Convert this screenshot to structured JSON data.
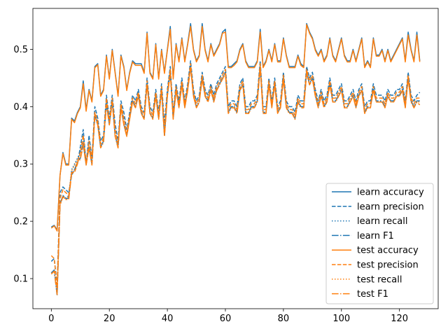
{
  "chart_data": {
    "type": "line",
    "title": "",
    "xlabel": "",
    "ylabel": "",
    "xlim": [
      -6.35,
      133.35
    ],
    "ylim": [
      0.0475,
      0.5714
    ],
    "xticks": [
      0,
      20,
      40,
      60,
      80,
      100,
      120
    ],
    "yticks": [
      0.1,
      0.2,
      0.3,
      0.4,
      0.5
    ],
    "grid": false,
    "legend_position": "lower-right",
    "colors": {
      "learn": "#1f77b4",
      "test": "#ff7f0e"
    },
    "series": [
      {
        "name": "learn accuracy",
        "style": "solid",
        "color": "#1f77b4",
        "values": [
          0.19,
          0.193,
          0.185,
          0.28,
          0.32,
          0.3,
          0.3,
          0.38,
          0.375,
          0.39,
          0.4,
          0.445,
          0.395,
          0.43,
          0.41,
          0.47,
          0.475,
          0.42,
          0.43,
          0.49,
          0.45,
          0.5,
          0.46,
          0.42,
          0.49,
          0.47,
          0.43,
          0.46,
          0.48,
          0.475,
          0.475,
          0.475,
          0.46,
          0.53,
          0.46,
          0.45,
          0.51,
          0.45,
          0.5,
          0.46,
          0.5,
          0.54,
          0.45,
          0.51,
          0.48,
          0.52,
          0.48,
          0.51,
          0.545,
          0.5,
          0.48,
          0.49,
          0.545,
          0.5,
          0.48,
          0.51,
          0.49,
          0.5,
          0.51,
          0.53,
          0.535,
          0.47,
          0.47,
          0.475,
          0.48,
          0.5,
          0.51,
          0.48,
          0.47,
          0.47,
          0.47,
          0.48,
          0.535,
          0.47,
          0.48,
          0.5,
          0.48,
          0.51,
          0.48,
          0.48,
          0.52,
          0.49,
          0.47,
          0.47,
          0.47,
          0.49,
          0.475,
          0.47,
          0.545,
          0.53,
          0.52,
          0.5,
          0.49,
          0.5,
          0.48,
          0.49,
          0.52,
          0.49,
          0.48,
          0.5,
          0.52,
          0.49,
          0.48,
          0.48,
          0.5,
          0.48,
          0.5,
          0.52,
          0.47,
          0.48,
          0.47,
          0.52,
          0.49,
          0.49,
          0.5,
          0.48,
          0.5,
          0.48,
          0.49,
          0.5,
          0.51,
          0.52,
          0.48,
          0.53,
          0.5,
          0.48,
          0.53,
          0.48
        ]
      },
      {
        "name": "learn precision",
        "style": "dashed",
        "color": "#1f77b4",
        "values": [
          0.13,
          0.135,
          0.09,
          0.25,
          0.26,
          0.255,
          0.25,
          0.28,
          0.29,
          0.3,
          0.33,
          0.36,
          0.3,
          0.35,
          0.31,
          0.4,
          0.38,
          0.34,
          0.35,
          0.42,
          0.38,
          0.42,
          0.37,
          0.34,
          0.41,
          0.39,
          0.36,
          0.39,
          0.42,
          0.41,
          0.43,
          0.4,
          0.39,
          0.45,
          0.4,
          0.39,
          0.43,
          0.39,
          0.44,
          0.37,
          0.43,
          0.47,
          0.39,
          0.44,
          0.41,
          0.45,
          0.41,
          0.44,
          0.48,
          0.43,
          0.41,
          0.42,
          0.46,
          0.43,
          0.42,
          0.44,
          0.42,
          0.44,
          0.45,
          0.46,
          0.47,
          0.4,
          0.41,
          0.41,
          0.4,
          0.44,
          0.45,
          0.4,
          0.4,
          0.41,
          0.41,
          0.42,
          0.48,
          0.4,
          0.4,
          0.45,
          0.41,
          0.45,
          0.4,
          0.41,
          0.46,
          0.41,
          0.4,
          0.4,
          0.39,
          0.42,
          0.41,
          0.41,
          0.47,
          0.45,
          0.46,
          0.43,
          0.41,
          0.43,
          0.41,
          0.42,
          0.45,
          0.42,
          0.42,
          0.43,
          0.44,
          0.41,
          0.41,
          0.42,
          0.43,
          0.41,
          0.43,
          0.44,
          0.4,
          0.41,
          0.41,
          0.44,
          0.42,
          0.42,
          0.42,
          0.41,
          0.43,
          0.42,
          0.42,
          0.43,
          0.43,
          0.44,
          0.41,
          0.46,
          0.42,
          0.41,
          0.42,
          0.425
        ]
      },
      {
        "name": "learn recall",
        "style": "dotted",
        "color": "#1f77b4",
        "values": [
          0.11,
          0.115,
          0.075,
          0.23,
          0.245,
          0.24,
          0.245,
          0.29,
          0.3,
          0.31,
          0.32,
          0.34,
          0.3,
          0.33,
          0.3,
          0.39,
          0.37,
          0.33,
          0.34,
          0.41,
          0.37,
          0.41,
          0.35,
          0.33,
          0.4,
          0.37,
          0.35,
          0.38,
          0.41,
          0.4,
          0.42,
          0.39,
          0.38,
          0.44,
          0.39,
          0.38,
          0.42,
          0.38,
          0.43,
          0.35,
          0.42,
          0.46,
          0.38,
          0.43,
          0.4,
          0.44,
          0.4,
          0.43,
          0.47,
          0.42,
          0.4,
          0.41,
          0.45,
          0.42,
          0.41,
          0.43,
          0.41,
          0.43,
          0.44,
          0.45,
          0.46,
          0.39,
          0.4,
          0.4,
          0.39,
          0.43,
          0.44,
          0.39,
          0.39,
          0.4,
          0.4,
          0.41,
          0.47,
          0.39,
          0.39,
          0.44,
          0.4,
          0.44,
          0.39,
          0.4,
          0.45,
          0.4,
          0.39,
          0.39,
          0.38,
          0.41,
          0.4,
          0.4,
          0.46,
          0.44,
          0.45,
          0.42,
          0.4,
          0.42,
          0.4,
          0.41,
          0.44,
          0.41,
          0.41,
          0.42,
          0.43,
          0.4,
          0.4,
          0.41,
          0.42,
          0.4,
          0.42,
          0.43,
          0.39,
          0.4,
          0.4,
          0.43,
          0.41,
          0.41,
          0.41,
          0.4,
          0.42,
          0.41,
          0.41,
          0.42,
          0.42,
          0.43,
          0.4,
          0.45,
          0.41,
          0.4,
          0.41,
          0.41
        ]
      },
      {
        "name": "learn F1",
        "style": "dashdot",
        "color": "#1f77b4",
        "values": [
          0.11,
          0.115,
          0.07,
          0.23,
          0.245,
          0.24,
          0.24,
          0.285,
          0.29,
          0.305,
          0.31,
          0.335,
          0.3,
          0.33,
          0.3,
          0.385,
          0.37,
          0.33,
          0.34,
          0.405,
          0.37,
          0.41,
          0.35,
          0.33,
          0.4,
          0.37,
          0.35,
          0.38,
          0.41,
          0.4,
          0.42,
          0.39,
          0.38,
          0.44,
          0.39,
          0.38,
          0.42,
          0.38,
          0.43,
          0.35,
          0.42,
          0.46,
          0.38,
          0.43,
          0.4,
          0.44,
          0.4,
          0.43,
          0.47,
          0.42,
          0.4,
          0.41,
          0.45,
          0.42,
          0.41,
          0.43,
          0.41,
          0.43,
          0.44,
          0.45,
          0.46,
          0.39,
          0.4,
          0.4,
          0.39,
          0.43,
          0.44,
          0.39,
          0.39,
          0.4,
          0.4,
          0.41,
          0.47,
          0.39,
          0.39,
          0.44,
          0.4,
          0.44,
          0.39,
          0.4,
          0.45,
          0.4,
          0.39,
          0.39,
          0.38,
          0.41,
          0.4,
          0.4,
          0.46,
          0.44,
          0.45,
          0.42,
          0.4,
          0.42,
          0.4,
          0.41,
          0.44,
          0.41,
          0.41,
          0.42,
          0.43,
          0.4,
          0.4,
          0.41,
          0.42,
          0.4,
          0.42,
          0.43,
          0.39,
          0.4,
          0.4,
          0.43,
          0.41,
          0.41,
          0.41,
          0.4,
          0.42,
          0.41,
          0.41,
          0.42,
          0.42,
          0.43,
          0.4,
          0.45,
          0.41,
          0.4,
          0.41,
          0.41
        ]
      },
      {
        "name": "test accuracy",
        "style": "solid",
        "color": "#ff7f0e",
        "values": [
          0.188,
          0.192,
          0.183,
          0.28,
          0.318,
          0.298,
          0.298,
          0.378,
          0.372,
          0.388,
          0.398,
          0.44,
          0.392,
          0.428,
          0.408,
          0.468,
          0.473,
          0.418,
          0.428,
          0.488,
          0.448,
          0.498,
          0.458,
          0.418,
          0.488,
          0.468,
          0.428,
          0.458,
          0.478,
          0.472,
          0.472,
          0.472,
          0.458,
          0.528,
          0.458,
          0.448,
          0.508,
          0.448,
          0.498,
          0.458,
          0.498,
          0.535,
          0.448,
          0.508,
          0.478,
          0.518,
          0.478,
          0.508,
          0.54,
          0.498,
          0.478,
          0.488,
          0.54,
          0.498,
          0.478,
          0.508,
          0.488,
          0.498,
          0.508,
          0.528,
          0.53,
          0.468,
          0.468,
          0.472,
          0.478,
          0.498,
          0.508,
          0.478,
          0.468,
          0.468,
          0.468,
          0.478,
          0.53,
          0.468,
          0.478,
          0.498,
          0.478,
          0.508,
          0.478,
          0.478,
          0.518,
          0.488,
          0.468,
          0.468,
          0.468,
          0.488,
          0.472,
          0.468,
          0.543,
          0.528,
          0.518,
          0.498,
          0.488,
          0.498,
          0.478,
          0.488,
          0.518,
          0.488,
          0.478,
          0.498,
          0.518,
          0.488,
          0.478,
          0.478,
          0.498,
          0.478,
          0.498,
          0.518,
          0.468,
          0.478,
          0.468,
          0.518,
          0.488,
          0.488,
          0.498,
          0.478,
          0.498,
          0.478,
          0.488,
          0.498,
          0.508,
          0.518,
          0.478,
          0.525,
          0.498,
          0.478,
          0.525,
          0.478
        ]
      },
      {
        "name": "test precision",
        "style": "dashed",
        "color": "#ff7f0e",
        "values": [
          0.14,
          0.135,
          0.085,
          0.24,
          0.255,
          0.25,
          0.245,
          0.285,
          0.285,
          0.3,
          0.32,
          0.35,
          0.3,
          0.34,
          0.31,
          0.39,
          0.375,
          0.335,
          0.345,
          0.415,
          0.375,
          0.415,
          0.36,
          0.335,
          0.405,
          0.38,
          0.355,
          0.385,
          0.415,
          0.405,
          0.425,
          0.395,
          0.385,
          0.445,
          0.395,
          0.385,
          0.425,
          0.385,
          0.435,
          0.36,
          0.425,
          0.465,
          0.385,
          0.435,
          0.405,
          0.445,
          0.405,
          0.435,
          0.475,
          0.425,
          0.405,
          0.415,
          0.455,
          0.425,
          0.415,
          0.435,
          0.415,
          0.435,
          0.445,
          0.455,
          0.465,
          0.395,
          0.405,
          0.405,
          0.395,
          0.435,
          0.445,
          0.395,
          0.395,
          0.405,
          0.405,
          0.415,
          0.475,
          0.395,
          0.395,
          0.445,
          0.405,
          0.445,
          0.395,
          0.405,
          0.455,
          0.405,
          0.395,
          0.395,
          0.385,
          0.415,
          0.405,
          0.405,
          0.465,
          0.445,
          0.455,
          0.425,
          0.405,
          0.425,
          0.405,
          0.415,
          0.445,
          0.415,
          0.415,
          0.425,
          0.435,
          0.405,
          0.405,
          0.415,
          0.425,
          0.405,
          0.425,
          0.435,
          0.395,
          0.405,
          0.405,
          0.435,
          0.415,
          0.415,
          0.415,
          0.405,
          0.425,
          0.415,
          0.415,
          0.425,
          0.425,
          0.435,
          0.405,
          0.455,
          0.415,
          0.405,
          0.415,
          0.415
        ]
      },
      {
        "name": "test recall",
        "style": "dotted",
        "color": "#ff7f0e",
        "values": [
          0.108,
          0.113,
          0.073,
          0.228,
          0.243,
          0.238,
          0.243,
          0.288,
          0.298,
          0.308,
          0.318,
          0.338,
          0.298,
          0.328,
          0.298,
          0.388,
          0.368,
          0.328,
          0.338,
          0.408,
          0.368,
          0.408,
          0.348,
          0.328,
          0.398,
          0.368,
          0.348,
          0.378,
          0.408,
          0.398,
          0.418,
          0.388,
          0.378,
          0.438,
          0.388,
          0.378,
          0.418,
          0.378,
          0.428,
          0.348,
          0.418,
          0.458,
          0.378,
          0.428,
          0.398,
          0.438,
          0.398,
          0.428,
          0.468,
          0.418,
          0.398,
          0.408,
          0.448,
          0.418,
          0.408,
          0.428,
          0.408,
          0.428,
          0.438,
          0.448,
          0.458,
          0.388,
          0.398,
          0.398,
          0.388,
          0.428,
          0.438,
          0.388,
          0.388,
          0.398,
          0.398,
          0.408,
          0.468,
          0.388,
          0.388,
          0.438,
          0.398,
          0.438,
          0.388,
          0.398,
          0.448,
          0.398,
          0.388,
          0.388,
          0.378,
          0.408,
          0.398,
          0.398,
          0.458,
          0.438,
          0.448,
          0.418,
          0.398,
          0.418,
          0.398,
          0.408,
          0.438,
          0.408,
          0.408,
          0.418,
          0.428,
          0.398,
          0.398,
          0.408,
          0.418,
          0.398,
          0.418,
          0.428,
          0.388,
          0.398,
          0.398,
          0.428,
          0.408,
          0.408,
          0.408,
          0.398,
          0.418,
          0.408,
          0.408,
          0.418,
          0.418,
          0.428,
          0.398,
          0.448,
          0.408,
          0.398,
          0.408,
          0.408
        ]
      },
      {
        "name": "test F1",
        "style": "dashdot",
        "color": "#ff7f0e",
        "values": [
          0.108,
          0.113,
          0.072,
          0.228,
          0.243,
          0.238,
          0.238,
          0.283,
          0.288,
          0.303,
          0.308,
          0.333,
          0.298,
          0.328,
          0.298,
          0.383,
          0.368,
          0.328,
          0.338,
          0.403,
          0.368,
          0.408,
          0.348,
          0.328,
          0.398,
          0.368,
          0.348,
          0.378,
          0.408,
          0.398,
          0.418,
          0.388,
          0.378,
          0.438,
          0.388,
          0.378,
          0.418,
          0.378,
          0.428,
          0.348,
          0.418,
          0.458,
          0.378,
          0.428,
          0.398,
          0.438,
          0.398,
          0.428,
          0.468,
          0.418,
          0.398,
          0.408,
          0.448,
          0.418,
          0.408,
          0.428,
          0.408,
          0.428,
          0.438,
          0.448,
          0.458,
          0.388,
          0.398,
          0.398,
          0.388,
          0.428,
          0.438,
          0.388,
          0.388,
          0.398,
          0.398,
          0.408,
          0.468,
          0.388,
          0.388,
          0.438,
          0.398,
          0.438,
          0.388,
          0.398,
          0.448,
          0.398,
          0.388,
          0.388,
          0.378,
          0.408,
          0.398,
          0.398,
          0.458,
          0.438,
          0.448,
          0.418,
          0.398,
          0.418,
          0.398,
          0.408,
          0.438,
          0.408,
          0.408,
          0.418,
          0.428,
          0.398,
          0.398,
          0.408,
          0.418,
          0.398,
          0.418,
          0.428,
          0.388,
          0.398,
          0.398,
          0.428,
          0.408,
          0.408,
          0.408,
          0.398,
          0.418,
          0.408,
          0.408,
          0.418,
          0.418,
          0.428,
          0.398,
          0.448,
          0.408,
          0.398,
          0.408,
          0.403
        ]
      }
    ]
  }
}
